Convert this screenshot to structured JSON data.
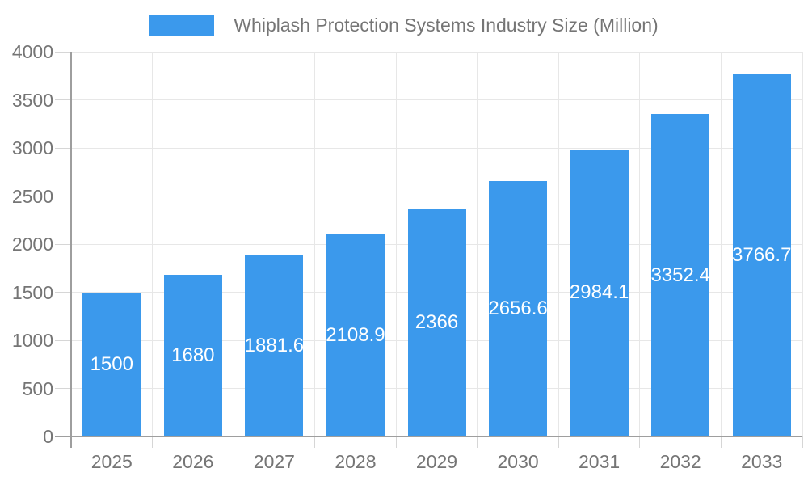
{
  "chart_data": {
    "type": "bar",
    "title": "Whiplash Protection Systems Industry Size (Million)",
    "categories": [
      "2025",
      "2026",
      "2027",
      "2028",
      "2029",
      "2030",
      "2031",
      "2032",
      "2033"
    ],
    "values": [
      1500,
      1680,
      1881.6,
      2108.9,
      2366,
      2656.6,
      2984.1,
      3352.4,
      3766.7
    ],
    "value_labels": [
      "1500",
      "1680",
      "1881.6",
      "2108.9",
      "2366",
      "2656.6",
      "2984.1",
      "3352.4",
      "3766.7"
    ],
    "xlabel": "",
    "ylabel": "",
    "ylim": [
      0,
      4000
    ],
    "ytick_step": 500,
    "ytick_labels": [
      "0",
      "500",
      "1000",
      "1500",
      "2000",
      "2500",
      "3000",
      "3500",
      "4000"
    ],
    "grid": true,
    "legend_position": "top-center",
    "colors": {
      "bar": "#3B99EC",
      "bar_label_text": "#FFFFFF",
      "axis_text": "#757575",
      "gridline": "#E7E7E7",
      "axis_line": "#9E9E9E",
      "tick": "#D6D6D6",
      "background": "#FFFFFF"
    }
  }
}
